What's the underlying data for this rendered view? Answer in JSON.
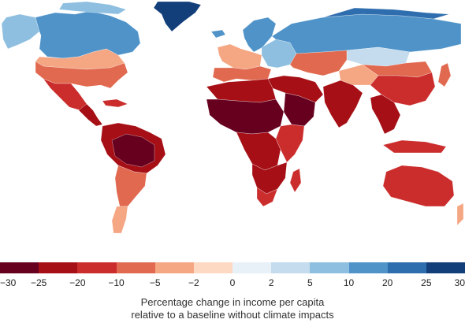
{
  "legend": {
    "ticks": [
      "−30",
      "−25",
      "−20",
      "−10",
      "−5",
      "−2",
      "0",
      "2",
      "5",
      "10",
      "20",
      "25",
      "30"
    ],
    "colors": [
      "#67001f",
      "#a50f15",
      "#cb2d2d",
      "#e0694f",
      "#f5a683",
      "#fdd9c4",
      "#e8f1f8",
      "#c4dcee",
      "#8ebfe0",
      "#4f93c9",
      "#2f6eae",
      "#123f7a"
    ],
    "caption_line1": "Percentage change in income per capita",
    "caption_line2": "relative to a baseline without climate impacts"
  },
  "map": {
    "region_colors": {
      "canada": "#4f93c9",
      "arctic_islands": "#8ebfe0",
      "alaska": "#8ebfe0",
      "usa_north": "#f5a683",
      "usa_south": "#e0694f",
      "mexico": "#cb2d2d",
      "central_america": "#a50f15",
      "caribbean": "#cb2d2d",
      "greenland": "#123f7a",
      "amazon": "#67001f",
      "south_america_north": "#a50f15",
      "south_america_south": "#e0694f",
      "patagonia": "#f5a683",
      "iceland": "#4f93c9",
      "scandinavia": "#4f93c9",
      "western_europe": "#f5a683",
      "southern_europe": "#e0694f",
      "eastern_europe": "#8ebfe0",
      "russia": "#4f93c9",
      "siberia_north": "#2f6eae",
      "north_africa": "#a50f15",
      "sahel": "#67001f",
      "central_africa": "#a50f15",
      "east_africa": "#cb2d2d",
      "southern_africa": "#a50f15",
      "south_africa": "#cb2d2d",
      "madagascar": "#cb2d2d",
      "middle_east": "#a50f15",
      "arabia": "#67001f",
      "central_asia": "#e0694f",
      "mongolia": "#c4dcee",
      "india": "#a50f15",
      "china": "#cb2d2d",
      "china_north": "#e0694f",
      "tibet": "#f5a683",
      "southeast_asia": "#a50f15",
      "indonesia": "#cb2d2d",
      "japan": "#e0694f",
      "australia": "#cb2d2d",
      "new_zealand": "#f5a683"
    }
  }
}
